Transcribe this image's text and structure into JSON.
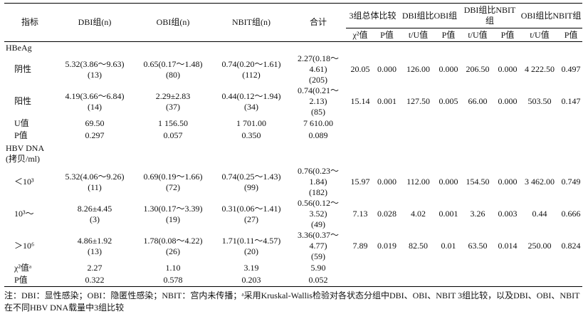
{
  "table": {
    "header_top": [
      "指标",
      "DBI组(n)",
      "OBI组(n)",
      "NBIT组(n)",
      "合计",
      "3组总体比较",
      "DBI组比OBI组",
      "DBI组比NBIT组",
      "OBI组比NBIT组"
    ],
    "header_sub": [
      "χ²值",
      "P值",
      "t/U值",
      "P值",
      "t/U值",
      "P值",
      "t/U值",
      "P值"
    ],
    "rows": [
      {
        "label": "HBeAg"
      },
      {
        "label": "阴性",
        "cells": [
          "5.32(3.86～9.63)",
          "0.65(0.17～1.48)",
          "0.74(0.20～1.61)",
          "2.27(0.18～4.61)",
          "20.05",
          "0.000",
          "126.00",
          "0.000",
          "206.50",
          "0.000",
          "4 222.50",
          "0.497"
        ],
        "counts": [
          "(13)",
          "(80)",
          "(112)",
          "(205)"
        ]
      },
      {
        "label": "阳性",
        "cells": [
          "4.19(3.66～6.84)",
          "2.29±2.83",
          "0.44(0.12～1.94)",
          "0.74(0.21～2.13)",
          "15.14",
          "0.001",
          "127.50",
          "0.005",
          "66.00",
          "0.000",
          "503.50",
          "0.147"
        ],
        "counts": [
          "(14)",
          "(37)",
          "(34)",
          "(85)"
        ]
      },
      {
        "label": "U值",
        "cells": [
          "69.50",
          "1 156.50",
          "1 701.00",
          "7 610.00"
        ]
      },
      {
        "label": "P值",
        "cells": [
          "0.297",
          "0.057",
          "0.350",
          "0.089"
        ]
      },
      {
        "label": "HBV DNA (拷贝/ml)"
      },
      {
        "label": "＜10³",
        "cells": [
          "5.32(4.06～9.26)",
          "0.69(0.19～1.66)",
          "0.74(0.25～1.43)",
          "0.76(0.23～1.84)",
          "15.97",
          "0.000",
          "112.00",
          "0.000",
          "154.50",
          "0.000",
          "3 462.00",
          "0.749"
        ],
        "counts": [
          "(11)",
          "(72)",
          "(99)",
          "(182)"
        ]
      },
      {
        "label": "10³～",
        "cells": [
          "8.26±4.45",
          "1.30(0.17～3.39)",
          "0.31(0.06～1.41)",
          "0.56(0.12～3.52)",
          "7.13",
          "0.028",
          "4.02",
          "0.001",
          "3.26",
          "0.003",
          "0.44",
          "0.666"
        ],
        "counts": [
          "(3)",
          "(19)",
          "(27)",
          "(49)"
        ]
      },
      {
        "label": "＞10⁶",
        "cells": [
          "4.86±1.92",
          "1.78(0.08～4.22)",
          "1.71(0.11～4.57)",
          "3.36(0.37～4.77)",
          "7.89",
          "0.019",
          "82.50",
          "0.01",
          "63.50",
          "0.014",
          "250.00",
          "0.824"
        ],
        "counts": [
          "(13)",
          "(26)",
          "(20)",
          "(59)"
        ]
      },
      {
        "label": "χ²值ᵃ",
        "cells": [
          "2.27",
          "1.10",
          "3.19",
          "5.90"
        ]
      },
      {
        "label": "P值",
        "cells": [
          "0.322",
          "0.578",
          "0.203",
          "0.052"
        ]
      }
    ]
  },
  "note": "注：DBI：显性感染；OBI：隐匿性感染；NBIT：宫内未传播；ᵃ采用Kruskal-Wallis检验对各状态分组中DBI、OBI、NBIT 3组比较，以及DBI、OBI、NBIT在不同HBV DNA载量中3组比较"
}
